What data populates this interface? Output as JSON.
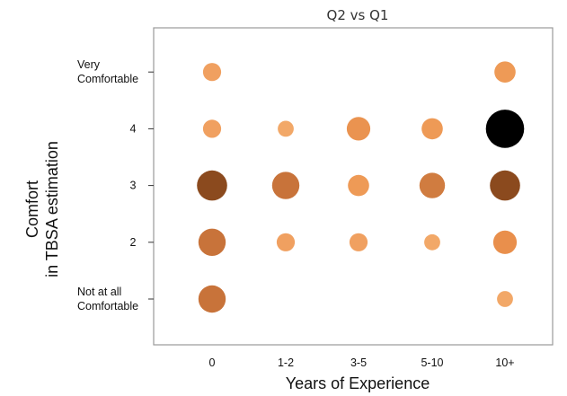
{
  "chart_data": {
    "type": "scatter",
    "title": "Q2 vs Q1",
    "xlabel": "Years of Experience",
    "ylabel": [
      "Comfort",
      "in TBSA estimation"
    ],
    "x_categories": [
      "0",
      "1-2",
      "3-5",
      "5-10",
      "10+"
    ],
    "y_levels": [
      1,
      2,
      3,
      4,
      5
    ],
    "y_tick_labels": [
      [
        "Not at all",
        "Comfortable"
      ],
      [
        "2"
      ],
      [
        "3"
      ],
      [
        "4"
      ],
      [
        "Very",
        "Comfortable"
      ]
    ],
    "grid": false,
    "points": [
      {
        "x": "0",
        "y": 5,
        "size": 1,
        "color": "#f0a060"
      },
      {
        "x": "10+",
        "y": 5,
        "size": 2,
        "color": "#ee9a56"
      },
      {
        "x": "0",
        "y": 4,
        "size": 1,
        "color": "#f0a060"
      },
      {
        "x": "1-2",
        "y": 4,
        "size": 0.5,
        "color": "#f2a868"
      },
      {
        "x": "3-5",
        "y": 4,
        "size": 3,
        "color": "#ea9350"
      },
      {
        "x": "5-10",
        "y": 4,
        "size": 2,
        "color": "#ee9a56"
      },
      {
        "x": "10+",
        "y": 4,
        "size": 14,
        "color": "#000000"
      },
      {
        "x": "0",
        "y": 3,
        "size": 7,
        "color": "#8b4a1e"
      },
      {
        "x": "1-2",
        "y": 3,
        "size": 5,
        "color": "#c8733a"
      },
      {
        "x": "3-5",
        "y": 3,
        "size": 2,
        "color": "#ee9a56"
      },
      {
        "x": "5-10",
        "y": 3,
        "size": 4,
        "color": "#d07c40"
      },
      {
        "x": "10+",
        "y": 3,
        "size": 7,
        "color": "#8b4a1e"
      },
      {
        "x": "0",
        "y": 2,
        "size": 5,
        "color": "#c8733a"
      },
      {
        "x": "1-2",
        "y": 2,
        "size": 1,
        "color": "#f0a060"
      },
      {
        "x": "3-5",
        "y": 2,
        "size": 1,
        "color": "#f0a060"
      },
      {
        "x": "5-10",
        "y": 2,
        "size": 0.5,
        "color": "#f2a868"
      },
      {
        "x": "10+",
        "y": 2,
        "size": 3,
        "color": "#e98f4c"
      },
      {
        "x": "0",
        "y": 1,
        "size": 5,
        "color": "#c8733a"
      },
      {
        "x": "10+",
        "y": 1,
        "size": 0.5,
        "color": "#f2a868"
      }
    ]
  }
}
